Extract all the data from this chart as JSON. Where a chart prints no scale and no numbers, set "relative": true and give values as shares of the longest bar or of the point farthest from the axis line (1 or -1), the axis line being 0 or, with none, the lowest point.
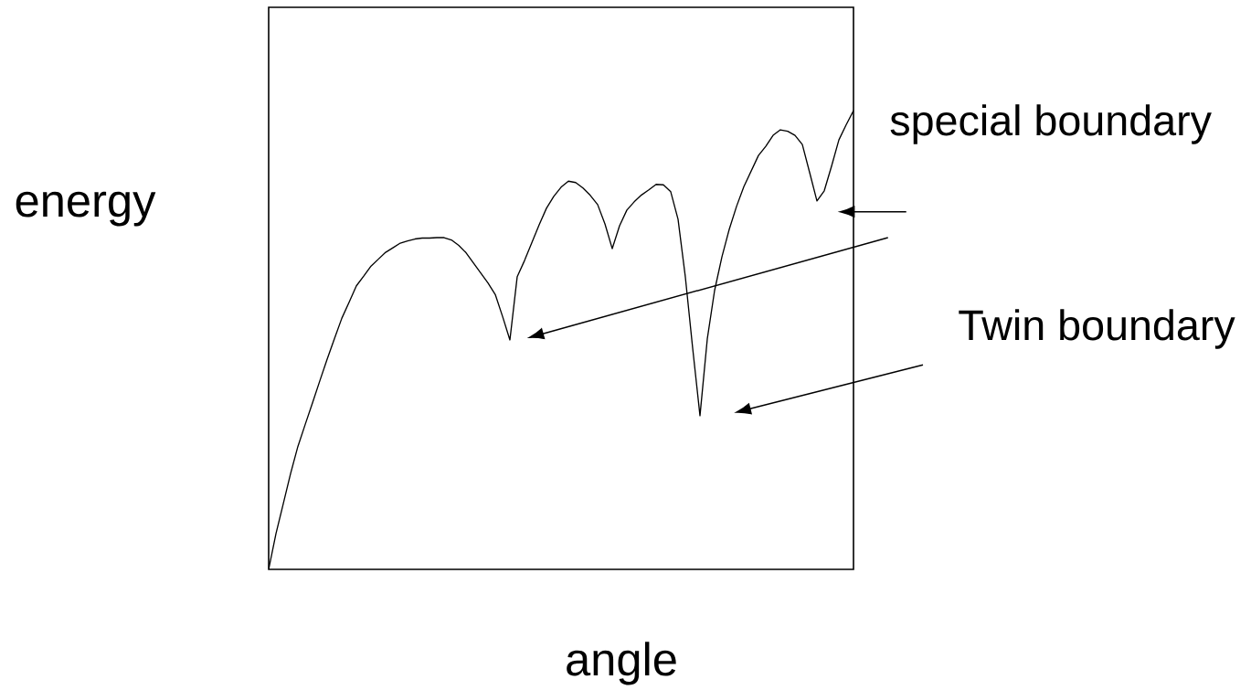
{
  "chart_data": {
    "type": "line",
    "xlabel": "angle",
    "ylabel": "energy",
    "annotations": [
      "special boundary",
      "Twin boundary"
    ],
    "relative": true,
    "categories": [
      null,
      null,
      null,
      null,
      null,
      null,
      null,
      null,
      null,
      null,
      null,
      null,
      null,
      null,
      null,
      null,
      null,
      null,
      null,
      null,
      null,
      null,
      null,
      null,
      null,
      null,
      null,
      null,
      null,
      null,
      null,
      null,
      null,
      null,
      null,
      null,
      null,
      null,
      null,
      null,
      null,
      null,
      null,
      null,
      null,
      null,
      null,
      null,
      null,
      null,
      null,
      null,
      null,
      null,
      null,
      null,
      null,
      null,
      null,
      null,
      null,
      null,
      null,
      null,
      null,
      null,
      null,
      null,
      null,
      null,
      null,
      null,
      null,
      null,
      null,
      null,
      null,
      null,
      null,
      null,
      null
    ],
    "series": [
      {
        "color": "#000000",
        "values": [
          0,
          0.078,
          0.143,
          0.209,
          0.268,
          0.316,
          0.363,
          0.411,
          0.458,
          0.503,
          0.547,
          0.582,
          0.618,
          0.639,
          0.661,
          0.676,
          0.691,
          0.701,
          0.711,
          0.716,
          0.72,
          0.722,
          0.722,
          0.723,
          0.723,
          0.718,
          0.706,
          0.69,
          0.668,
          0.646,
          0.624,
          0.599,
          0.551,
          0.5,
          0.638,
          0.673,
          0.712,
          0.751,
          0.787,
          0.813,
          0.833,
          0.846,
          0.843,
          0.831,
          0.815,
          0.795,
          0.753,
          0.699,
          0.749,
          0.783,
          0.801,
          0.816,
          0.827,
          0.839,
          0.838,
          0.823,
          0.763,
          0.637,
          0.482,
          0.335,
          0.502,
          0.608,
          0.681,
          0.741,
          0.791,
          0.834,
          0.868,
          0.902,
          0.922,
          0.946,
          0.958,
          0.955,
          0.946,
          0.926,
          0.865,
          0.803,
          0.825,
          0.879,
          0.936,
          0.969,
          1
        ]
      }
    ]
  }
}
